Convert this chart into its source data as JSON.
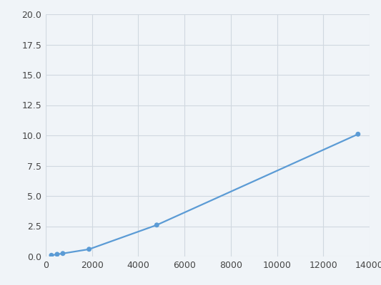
{
  "x": [
    246,
    493,
    740,
    1875,
    4800,
    13500
  ],
  "y": [
    0.1,
    0.18,
    0.25,
    0.6,
    2.6,
    10.1
  ],
  "line_color": "#5b9bd5",
  "marker_color": "#5b9bd5",
  "marker_size": 5,
  "line_width": 1.6,
  "xlim": [
    0,
    14000
  ],
  "ylim": [
    0,
    20.0
  ],
  "xticks": [
    0,
    2000,
    4000,
    6000,
    8000,
    10000,
    12000,
    14000
  ],
  "yticks": [
    0.0,
    2.5,
    5.0,
    7.5,
    10.0,
    12.5,
    15.0,
    17.5,
    20.0
  ],
  "grid_color": "#d0d8e0",
  "background_color": "#f0f4f8",
  "plot_bg_color": "#f0f4f8",
  "tick_label_fontsize": 9,
  "tick_label_color": "#444444"
}
